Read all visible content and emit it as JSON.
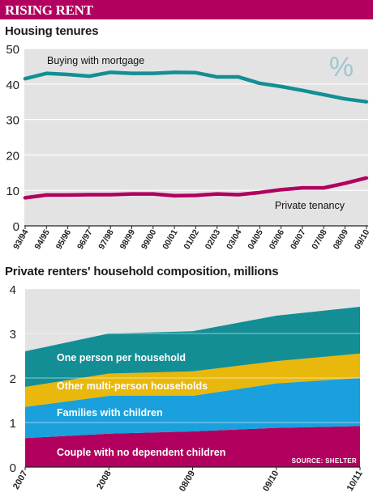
{
  "banner": {
    "title": "RISING RENT"
  },
  "chart1": {
    "title": "Housing tenures",
    "percent_symbol": "%",
    "percent_color": "#9fc7d1"
  },
  "chart2": {
    "title": "Private renters' household composition, millions",
    "source": "SOURCE: SHELTER"
  },
  "colors": {
    "brand": "#b2005f",
    "teal": "#138e95",
    "magenta": "#b2005f",
    "yellow": "#e8b80c",
    "blue": "#1aa0dc",
    "panel": "#e3e3e3"
  },
  "chart_data": [
    {
      "type": "line",
      "title": "Housing tenures",
      "categories": [
        "93/94",
        "94/95",
        "95/96",
        "96/97",
        "97/98",
        "98/99",
        "99/00",
        "00/01",
        "01/02",
        "02/03",
        "03/04",
        "04/05",
        "05/06",
        "06/07",
        "07/08",
        "08/09",
        "09/10"
      ],
      "ylim": [
        0,
        50
      ],
      "yticks": [
        0,
        10,
        20,
        30,
        40,
        50
      ],
      "grid": true,
      "unit": "%",
      "series": [
        {
          "name": "Buying with mortgage",
          "color": "#138e95",
          "values": [
            41.5,
            43,
            42.7,
            42.2,
            43.3,
            43,
            43,
            43.3,
            43.2,
            42,
            42,
            40.2,
            39.3,
            38.2,
            37,
            35.8,
            35
          ]
        },
        {
          "name": "Private tenancy",
          "color": "#b2005f",
          "values": [
            7.9,
            8.7,
            8.7,
            8.8,
            8.8,
            9,
            9,
            8.5,
            8.6,
            9,
            8.8,
            9.4,
            10.2,
            10.7,
            10.7,
            12,
            13.5
          ]
        }
      ]
    },
    {
      "type": "area",
      "stacked": true,
      "title": "Private renters' household composition, millions",
      "x": [
        "2007",
        "2008",
        "08/09",
        "09/10",
        "10/11"
      ],
      "ylim": [
        0,
        4
      ],
      "yticks": [
        0,
        1,
        2,
        3,
        4
      ],
      "grid": true,
      "series": [
        {
          "name": "Couple with no dependent children",
          "color": "#b2005f",
          "values": [
            0.65,
            0.75,
            0.8,
            0.88,
            0.92
          ]
        },
        {
          "name": "Families with children",
          "color": "#1aa0dc",
          "values": [
            0.7,
            0.85,
            0.8,
            1.0,
            1.08
          ]
        },
        {
          "name": "Other multi-person households",
          "color": "#e8b80c",
          "values": [
            0.45,
            0.5,
            0.55,
            0.5,
            0.55
          ]
        },
        {
          "name": "One person per household",
          "color": "#138e95",
          "values": [
            0.8,
            0.9,
            0.9,
            1.02,
            1.05
          ]
        }
      ]
    }
  ]
}
